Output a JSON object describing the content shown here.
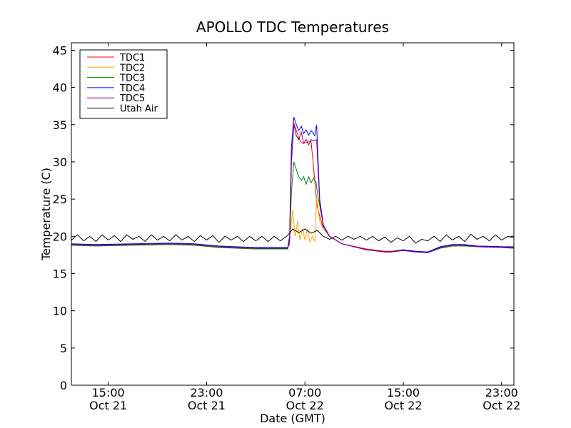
{
  "chart_data": {
    "type": "line",
    "title": "APOLLO TDC Temperatures",
    "xlabel": "Date (GMT)",
    "ylabel": "Temperature (C)",
    "x_unit": "hours since Oct 21 00:00 GMT",
    "xlim": [
      12,
      48
    ],
    "ylim": [
      0,
      46
    ],
    "yticks": [
      0,
      5,
      10,
      15,
      20,
      25,
      30,
      35,
      40,
      45
    ],
    "xticks": [
      {
        "x": 15,
        "time": "15:00",
        "date": "Oct 21"
      },
      {
        "x": 23,
        "time": "23:00",
        "date": "Oct 21"
      },
      {
        "x": 31,
        "time": "07:00",
        "date": "Oct 22"
      },
      {
        "x": 39,
        "time": "15:00",
        "date": "Oct 22"
      },
      {
        "x": 47,
        "time": "23:00",
        "date": "Oct 22"
      }
    ],
    "legend_position": "top-left",
    "series": [
      {
        "name": "TDC1",
        "color": "#ff0000",
        "x": [
          12,
          14,
          17,
          20,
          22,
          24,
          27,
          29.6,
          29.75,
          29.9,
          30.1,
          30.3,
          30.5,
          30.7,
          30.9,
          31.1,
          31.5,
          32,
          32.5,
          33,
          34,
          36,
          37.5,
          38,
          39,
          40,
          41,
          42,
          43,
          44,
          45,
          47,
          48
        ],
        "y": [
          18.9,
          18.8,
          18.9,
          19.0,
          18.9,
          18.6,
          18.4,
          18.4,
          19.0,
          30,
          35.2,
          34.2,
          33.2,
          32.6,
          32.5,
          32.6,
          32.8,
          24,
          21,
          20,
          19,
          18.3,
          18.0,
          18.0,
          18.2,
          18.0,
          17.9,
          18.5,
          18.8,
          18.8,
          18.7,
          18.6,
          18.5
        ]
      },
      {
        "name": "TDC2",
        "color": "#ffa500",
        "x": [
          12,
          14,
          17,
          20,
          22,
          24,
          27,
          29.6,
          29.75,
          29.9,
          30.0,
          30.2,
          30.4,
          30.6,
          30.8,
          31.0,
          31.2,
          31.4,
          31.6,
          31.8,
          31.95,
          32.2,
          32.5,
          33,
          34,
          36,
          37.5,
          38,
          39,
          40,
          41,
          42,
          43,
          44,
          45,
          47,
          48
        ],
        "y": [
          18.8,
          18.7,
          18.8,
          18.9,
          18.8,
          18.5,
          18.3,
          18.3,
          19.5,
          22,
          23.5,
          20,
          22,
          19.5,
          21,
          19.5,
          21,
          19.2,
          20,
          19.3,
          25.2,
          22,
          21,
          20,
          19,
          18.2,
          17.9,
          17.9,
          18.1,
          17.9,
          17.8,
          18.4,
          18.7,
          18.7,
          18.6,
          18.5,
          18.4
        ]
      },
      {
        "name": "TDC3",
        "color": "#008000",
        "x": [
          12,
          14,
          17,
          20,
          22,
          24,
          27,
          29.6,
          29.75,
          29.9,
          30.1,
          30.3,
          30.5,
          30.7,
          30.9,
          31.1,
          31.3,
          31.5,
          31.7,
          31.9,
          32.1,
          32.5,
          33,
          34,
          36,
          37.5,
          38,
          39,
          40,
          41,
          42,
          43,
          44,
          45,
          47,
          48
        ],
        "y": [
          18.8,
          18.7,
          18.8,
          18.9,
          18.8,
          18.5,
          18.3,
          18.3,
          19.5,
          26,
          30,
          29,
          28,
          27.5,
          28,
          27,
          28,
          27.2,
          27.8,
          27.3,
          25,
          21.5,
          20,
          19,
          18.2,
          17.9,
          17.9,
          18.1,
          17.9,
          17.8,
          18.4,
          18.7,
          18.7,
          18.6,
          18.5,
          18.4
        ]
      },
      {
        "name": "TDC4",
        "color": "#0000ff",
        "x": [
          12,
          14,
          17,
          20,
          22,
          24,
          27,
          29.6,
          29.75,
          29.9,
          30.1,
          30.3,
          30.5,
          30.7,
          30.9,
          31.1,
          31.3,
          31.5,
          31.7,
          31.8,
          31.95,
          32.2,
          32.5,
          33,
          34,
          36,
          37.5,
          38,
          39,
          40,
          41,
          42,
          43,
          44,
          45,
          47,
          48
        ],
        "y": [
          19.0,
          18.9,
          19.0,
          19.1,
          19.0,
          18.7,
          18.5,
          18.5,
          20,
          32,
          36,
          35,
          34.2,
          34.8,
          33.8,
          34.3,
          33.6,
          34.2,
          33.8,
          33.5,
          35,
          25,
          21.5,
          20,
          19,
          18.2,
          17.9,
          17.9,
          18.2,
          18.0,
          17.9,
          18.6,
          18.9,
          18.9,
          18.7,
          18.6,
          18.6
        ]
      },
      {
        "name": "TDC5",
        "color": "#800080",
        "x": [
          12,
          14,
          17,
          20,
          22,
          24,
          27,
          29.6,
          29.75,
          29.9,
          30.1,
          30.3,
          30.5,
          30.7,
          30.9,
          31.1,
          31.3,
          31.5,
          31.7,
          31.95,
          32.2,
          32.5,
          33,
          34,
          36,
          37.5,
          38,
          39,
          40,
          41,
          42,
          43,
          44,
          45,
          47,
          48
        ],
        "y": [
          18.9,
          18.8,
          18.9,
          19.0,
          18.9,
          18.6,
          18.4,
          18.4,
          19.5,
          30,
          35,
          33.5,
          33,
          34,
          32.5,
          33,
          32.3,
          33,
          32.8,
          33,
          24.5,
          21.3,
          20,
          19,
          18.2,
          17.9,
          17.9,
          18.1,
          17.9,
          17.8,
          18.5,
          18.8,
          18.8,
          18.6,
          18.5,
          18.5
        ]
      },
      {
        "name": "Utah Air",
        "color": "#000000",
        "x": [
          12,
          12.5,
          13,
          13.5,
          14,
          14.5,
          15,
          15.5,
          16,
          16.5,
          17,
          17.5,
          18,
          18.5,
          19,
          19.5,
          20,
          20.5,
          21,
          21.5,
          22,
          22.5,
          23,
          23.5,
          24,
          24.5,
          25,
          25.5,
          26,
          26.5,
          27,
          27.5,
          28,
          28.5,
          29,
          29.5,
          29.8,
          30.0,
          30.5,
          31.0,
          31.5,
          32.0,
          32.5,
          33,
          33.5,
          34,
          34.5,
          35,
          35.5,
          36,
          36.5,
          37,
          37.5,
          38,
          38.5,
          39,
          39.5,
          40,
          40.5,
          41,
          41.5,
          42,
          42.5,
          43,
          43.5,
          44,
          44.5,
          45,
          45.5,
          46,
          46.5,
          47,
          47.5,
          48
        ],
        "y": [
          19.5,
          20.2,
          19.4,
          20.0,
          19.3,
          20.2,
          19.5,
          20.1,
          19.3,
          20.2,
          19.6,
          20.0,
          19.3,
          20.2,
          19.5,
          20.0,
          19.4,
          20.2,
          19.5,
          20.0,
          19.3,
          20.1,
          19.5,
          20.1,
          19.2,
          20.0,
          19.5,
          20.0,
          19.3,
          20.0,
          19.4,
          20.0,
          19.3,
          20.0,
          19.4,
          20.0,
          20.5,
          21.0,
          20.5,
          21.0,
          20.4,
          20.8,
          20.0,
          19.6,
          20.0,
          19.5,
          20.0,
          19.6,
          20.0,
          19.5,
          20.0,
          19.4,
          19.9,
          19.2,
          19.8,
          19.4,
          20.0,
          19.1,
          19.6,
          19.4,
          20.0,
          19.3,
          20.2,
          19.5,
          20.0,
          19.3,
          20.3,
          19.6,
          20.0,
          19.4,
          20.2,
          19.5,
          20.0,
          19.8
        ]
      }
    ]
  }
}
